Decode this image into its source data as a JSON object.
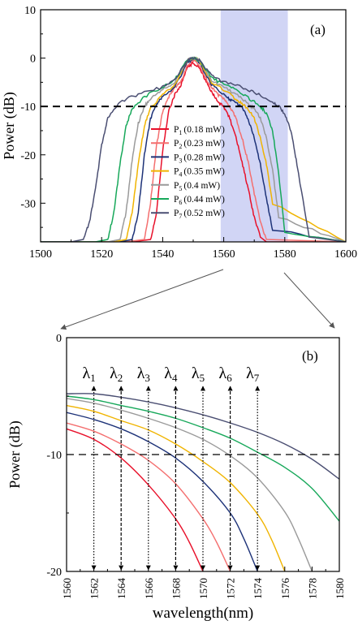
{
  "colors": {
    "P1": "#e8102a",
    "P2": "#f46f6f",
    "P3": "#1d3278",
    "P4": "#f0b400",
    "P5": "#9a9a9a",
    "P6": "#17a85a",
    "P7": "#4a4e72",
    "highlight": "#c2c7f2",
    "connector": "#555555"
  },
  "chart_data": [
    {
      "type": "line",
      "panel_label": "(a)",
      "xlabel": "",
      "ylabel": "Power (dB)",
      "xlim": [
        1500,
        1600
      ],
      "ylim": [
        -38,
        10
      ],
      "xticks": [
        1500,
        1520,
        1540,
        1560,
        1580,
        1600
      ],
      "yticks": [
        10,
        0,
        -10,
        -20,
        -30
      ],
      "threshold_y": -10,
      "highlight_x": [
        1559,
        1581
      ],
      "legend_position": "center-right",
      "series": [
        {
          "name": "P",
          "sub": "1",
          "power": "(0.18 mW)",
          "key": "P1",
          "x": [
            1500,
            1530,
            1536,
            1538,
            1540,
            1542,
            1544,
            1546,
            1548,
            1550,
            1552,
            1554,
            1556,
            1558,
            1560,
            1562,
            1564,
            1566,
            1568,
            1570,
            1572,
            1574,
            1600
          ],
          "y": [
            -38,
            -38,
            -37.5,
            -32,
            -19,
            -11,
            -7.5,
            -5.5,
            -2,
            -1,
            -2,
            -4.5,
            -7,
            -9,
            -10,
            -12.5,
            -16.5,
            -21.5,
            -27,
            -33,
            -37,
            -38,
            -38
          ]
        },
        {
          "name": "P",
          "sub": "2",
          "power": "(0.23 mW)",
          "key": "P2",
          "x": [
            1500,
            1528,
            1534,
            1536,
            1538,
            1540,
            1542,
            1544,
            1546,
            1548,
            1550,
            1552,
            1554,
            1556,
            1558,
            1560,
            1562,
            1564,
            1566,
            1568,
            1570,
            1572,
            1574,
            1600
          ],
          "y": [
            -38,
            -38,
            -37.5,
            -30,
            -18,
            -11,
            -8,
            -6,
            -5,
            -1.5,
            -0.5,
            -1.5,
            -4,
            -6,
            -7.5,
            -8.5,
            -10,
            -12.5,
            -16.5,
            -21.5,
            -28,
            -34,
            -37.5,
            -38
          ]
        },
        {
          "name": "P",
          "sub": "3",
          "power": "(0.28 mW)",
          "key": "P3",
          "x": [
            1500,
            1526,
            1530,
            1532,
            1534,
            1536,
            1538,
            1540,
            1544,
            1548,
            1550,
            1552,
            1556,
            1560,
            1562,
            1564,
            1566,
            1568,
            1570,
            1572,
            1574,
            1576,
            1600
          ],
          "y": [
            -38,
            -38,
            -37.5,
            -32,
            -20,
            -12.5,
            -9.5,
            -8,
            -6,
            -1,
            0,
            -1,
            -5.5,
            -7.5,
            -8.5,
            -9.2,
            -10.3,
            -12.5,
            -16.5,
            -22,
            -29,
            -35.5,
            -38
          ]
        },
        {
          "name": "P",
          "sub": "4",
          "power": "(0.35 mW)",
          "key": "P4",
          "x": [
            1500,
            1524,
            1528,
            1530,
            1532,
            1534,
            1536,
            1540,
            1544,
            1548,
            1550,
            1552,
            1556,
            1560,
            1564,
            1566,
            1568,
            1570,
            1572,
            1574,
            1576,
            1600
          ],
          "y": [
            -38,
            -38,
            -37.5,
            -32,
            -22,
            -14,
            -10.5,
            -7.5,
            -5.5,
            -0.5,
            0,
            -0.5,
            -5,
            -6.5,
            -8.5,
            -9.5,
            -10.5,
            -12.5,
            -16.5,
            -22,
            -30,
            -38
          ]
        },
        {
          "name": "P",
          "sub": "5",
          "power": "(0.4   mW)",
          "key": "P5",
          "x": [
            1500,
            1522,
            1526,
            1528,
            1530,
            1532,
            1534,
            1536,
            1540,
            1544,
            1548,
            1550,
            1552,
            1556,
            1560,
            1564,
            1568,
            1570,
            1572,
            1574,
            1576,
            1578,
            1600
          ],
          "y": [
            -38,
            -38,
            -37.5,
            -32,
            -21,
            -13.5,
            -10,
            -8.5,
            -6.5,
            -5,
            -0.5,
            0,
            -0.5,
            -4.5,
            -6,
            -7.5,
            -9.5,
            -10.5,
            -12.5,
            -16.5,
            -23,
            -33,
            -38
          ]
        },
        {
          "name": "P",
          "sub": "6",
          "power": "(0.44 mW)",
          "key": "P6",
          "x": [
            1500,
            1518,
            1522,
            1524,
            1526,
            1528,
            1530,
            1534,
            1540,
            1544,
            1548,
            1550,
            1552,
            1556,
            1560,
            1564,
            1568,
            1572,
            1574,
            1576,
            1578,
            1580,
            1600
          ],
          "y": [
            -38,
            -38,
            -37.5,
            -32,
            -22,
            -14,
            -10.5,
            -8,
            -6,
            -4.5,
            -0.5,
            0,
            -0.5,
            -4,
            -5.5,
            -6.5,
            -8.2,
            -10,
            -11.5,
            -15,
            -24,
            -36,
            -38
          ]
        },
        {
          "name": "P",
          "sub": "7",
          "power": "(0.52 mW)",
          "key": "P7",
          "x": [
            1500,
            1510,
            1514,
            1516,
            1518,
            1520,
            1522,
            1526,
            1532,
            1540,
            1544,
            1548,
            1550,
            1552,
            1556,
            1560,
            1566,
            1570,
            1576,
            1578,
            1580,
            1582,
            1584,
            1588,
            1600
          ],
          "y": [
            -38,
            -38,
            -37.5,
            -34,
            -27,
            -18,
            -12.5,
            -9,
            -7.5,
            -6,
            -4.5,
            -0.5,
            0,
            -0.5,
            -3.5,
            -5,
            -6,
            -7,
            -9.2,
            -10,
            -11.5,
            -15,
            -22,
            -37,
            -38
          ]
        }
      ]
    },
    {
      "type": "line",
      "panel_label": "(b)",
      "xlabel": "wavelength(nm)",
      "ylabel": "Power (dB)",
      "xlim": [
        1560,
        1580
      ],
      "ylim": [
        -20,
        0
      ],
      "xticks": [
        1560,
        1562,
        1564,
        1566,
        1568,
        1570,
        1572,
        1574,
        1576,
        1578,
        1580
      ],
      "yticks": [
        0,
        -10,
        -20
      ],
      "threshold_y": -10,
      "markers": [
        {
          "sym": "λ",
          "sub": "1",
          "x": 1562,
          "style": "dotted"
        },
        {
          "sym": "λ",
          "sub": "2",
          "x": 1564,
          "style": "dashed"
        },
        {
          "sym": "λ",
          "sub": "3",
          "x": 1566,
          "style": "dotted"
        },
        {
          "sym": "λ",
          "sub": "4",
          "x": 1568,
          "style": "dashed"
        },
        {
          "sym": "λ",
          "sub": "5",
          "x": 1570,
          "style": "dotted"
        },
        {
          "sym": "λ",
          "sub": "6",
          "x": 1572,
          "style": "dashed"
        },
        {
          "sym": "λ",
          "sub": "7",
          "x": 1574,
          "style": "dotted"
        }
      ],
      "series": [
        {
          "key": "P1",
          "x": [
            1560,
            1562,
            1564,
            1566,
            1568,
            1569,
            1570
          ],
          "y": [
            -7.8,
            -8.7,
            -10.3,
            -12.6,
            -15.5,
            -17.5,
            -20
          ]
        },
        {
          "key": "P2",
          "x": [
            1560,
            1562,
            1564,
            1566,
            1568,
            1570,
            1571,
            1572
          ],
          "y": [
            -7.3,
            -8,
            -9.1,
            -10.5,
            -12.5,
            -15.5,
            -17.5,
            -20
          ]
        },
        {
          "key": "P3",
          "x": [
            1560,
            1562,
            1564,
            1566,
            1568,
            1570,
            1572,
            1573,
            1574
          ],
          "y": [
            -6.4,
            -7,
            -7.8,
            -8.9,
            -10.3,
            -12.3,
            -15,
            -17.2,
            -20
          ]
        },
        {
          "key": "P4",
          "x": [
            1560,
            1562,
            1564,
            1566,
            1568,
            1570,
            1572,
            1574,
            1575,
            1576
          ],
          "y": [
            -5.8,
            -6.3,
            -7.1,
            -7.9,
            -9.1,
            -10.6,
            -12.4,
            -15.1,
            -17.2,
            -20
          ]
        },
        {
          "key": "P5",
          "x": [
            1560,
            1562,
            1564,
            1566,
            1568,
            1570,
            1572,
            1574,
            1576,
            1577,
            1578
          ],
          "y": [
            -5.2,
            -5.6,
            -6.2,
            -6.9,
            -7.7,
            -8.7,
            -10.1,
            -12,
            -14.9,
            -17.2,
            -20
          ]
        },
        {
          "key": "P6",
          "x": [
            1560,
            1562,
            1564,
            1566,
            1568,
            1570,
            1572,
            1574,
            1576,
            1578,
            1580
          ],
          "y": [
            -5,
            -5.3,
            -5.8,
            -6.3,
            -6.9,
            -7.7,
            -8.6,
            -9.8,
            -11.1,
            -12.9,
            -15.7
          ]
        },
        {
          "key": "P7",
          "x": [
            1560,
            1562,
            1564,
            1566,
            1568,
            1570,
            1572,
            1574,
            1576,
            1578,
            1580
          ],
          "y": [
            -4.8,
            -4.8,
            -5.1,
            -5.5,
            -6,
            -6.6,
            -7.3,
            -8.1,
            -9.1,
            -10.4,
            -12.1
          ]
        }
      ]
    }
  ]
}
